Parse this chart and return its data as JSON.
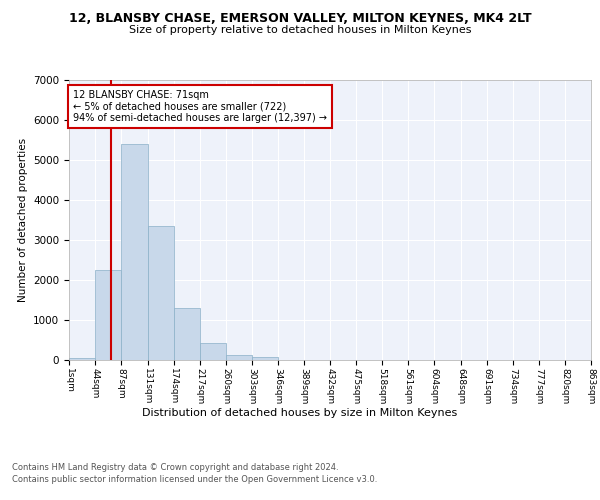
{
  "title": "12, BLANSBY CHASE, EMERSON VALLEY, MILTON KEYNES, MK4 2LT",
  "subtitle": "Size of property relative to detached houses in Milton Keynes",
  "xlabel": "Distribution of detached houses by size in Milton Keynes",
  "ylabel": "Number of detached properties",
  "footer_line1": "Contains HM Land Registry data © Crown copyright and database right 2024.",
  "footer_line2": "Contains public sector information licensed under the Open Government Licence v3.0.",
  "annotation_line1": "12 BLANSBY CHASE: 71sqm",
  "annotation_line2": "← 5% of detached houses are smaller (722)",
  "annotation_line3": "94% of semi-detached houses are larger (12,397) →",
  "property_size": 71,
  "bar_color": "#c8d8ea",
  "bar_edge_color": "#8ab0c8",
  "redline_color": "#cc0000",
  "annotation_box_edge": "#cc0000",
  "background_color": "#ffffff",
  "plot_background_color": "#eef2fa",
  "grid_color": "#ffffff",
  "bin_edges": [
    1,
    44,
    87,
    131,
    174,
    217,
    260,
    303,
    346,
    389,
    432,
    475,
    518,
    561,
    604,
    648,
    691,
    734,
    777,
    820,
    863
  ],
  "bar_heights": [
    50,
    2250,
    5400,
    3350,
    1300,
    420,
    130,
    70,
    10,
    5,
    3,
    2,
    1,
    1,
    0,
    0,
    0,
    0,
    0,
    0
  ],
  "ylim": [
    0,
    7000
  ],
  "yticks": [
    0,
    1000,
    2000,
    3000,
    4000,
    5000,
    6000,
    7000
  ]
}
